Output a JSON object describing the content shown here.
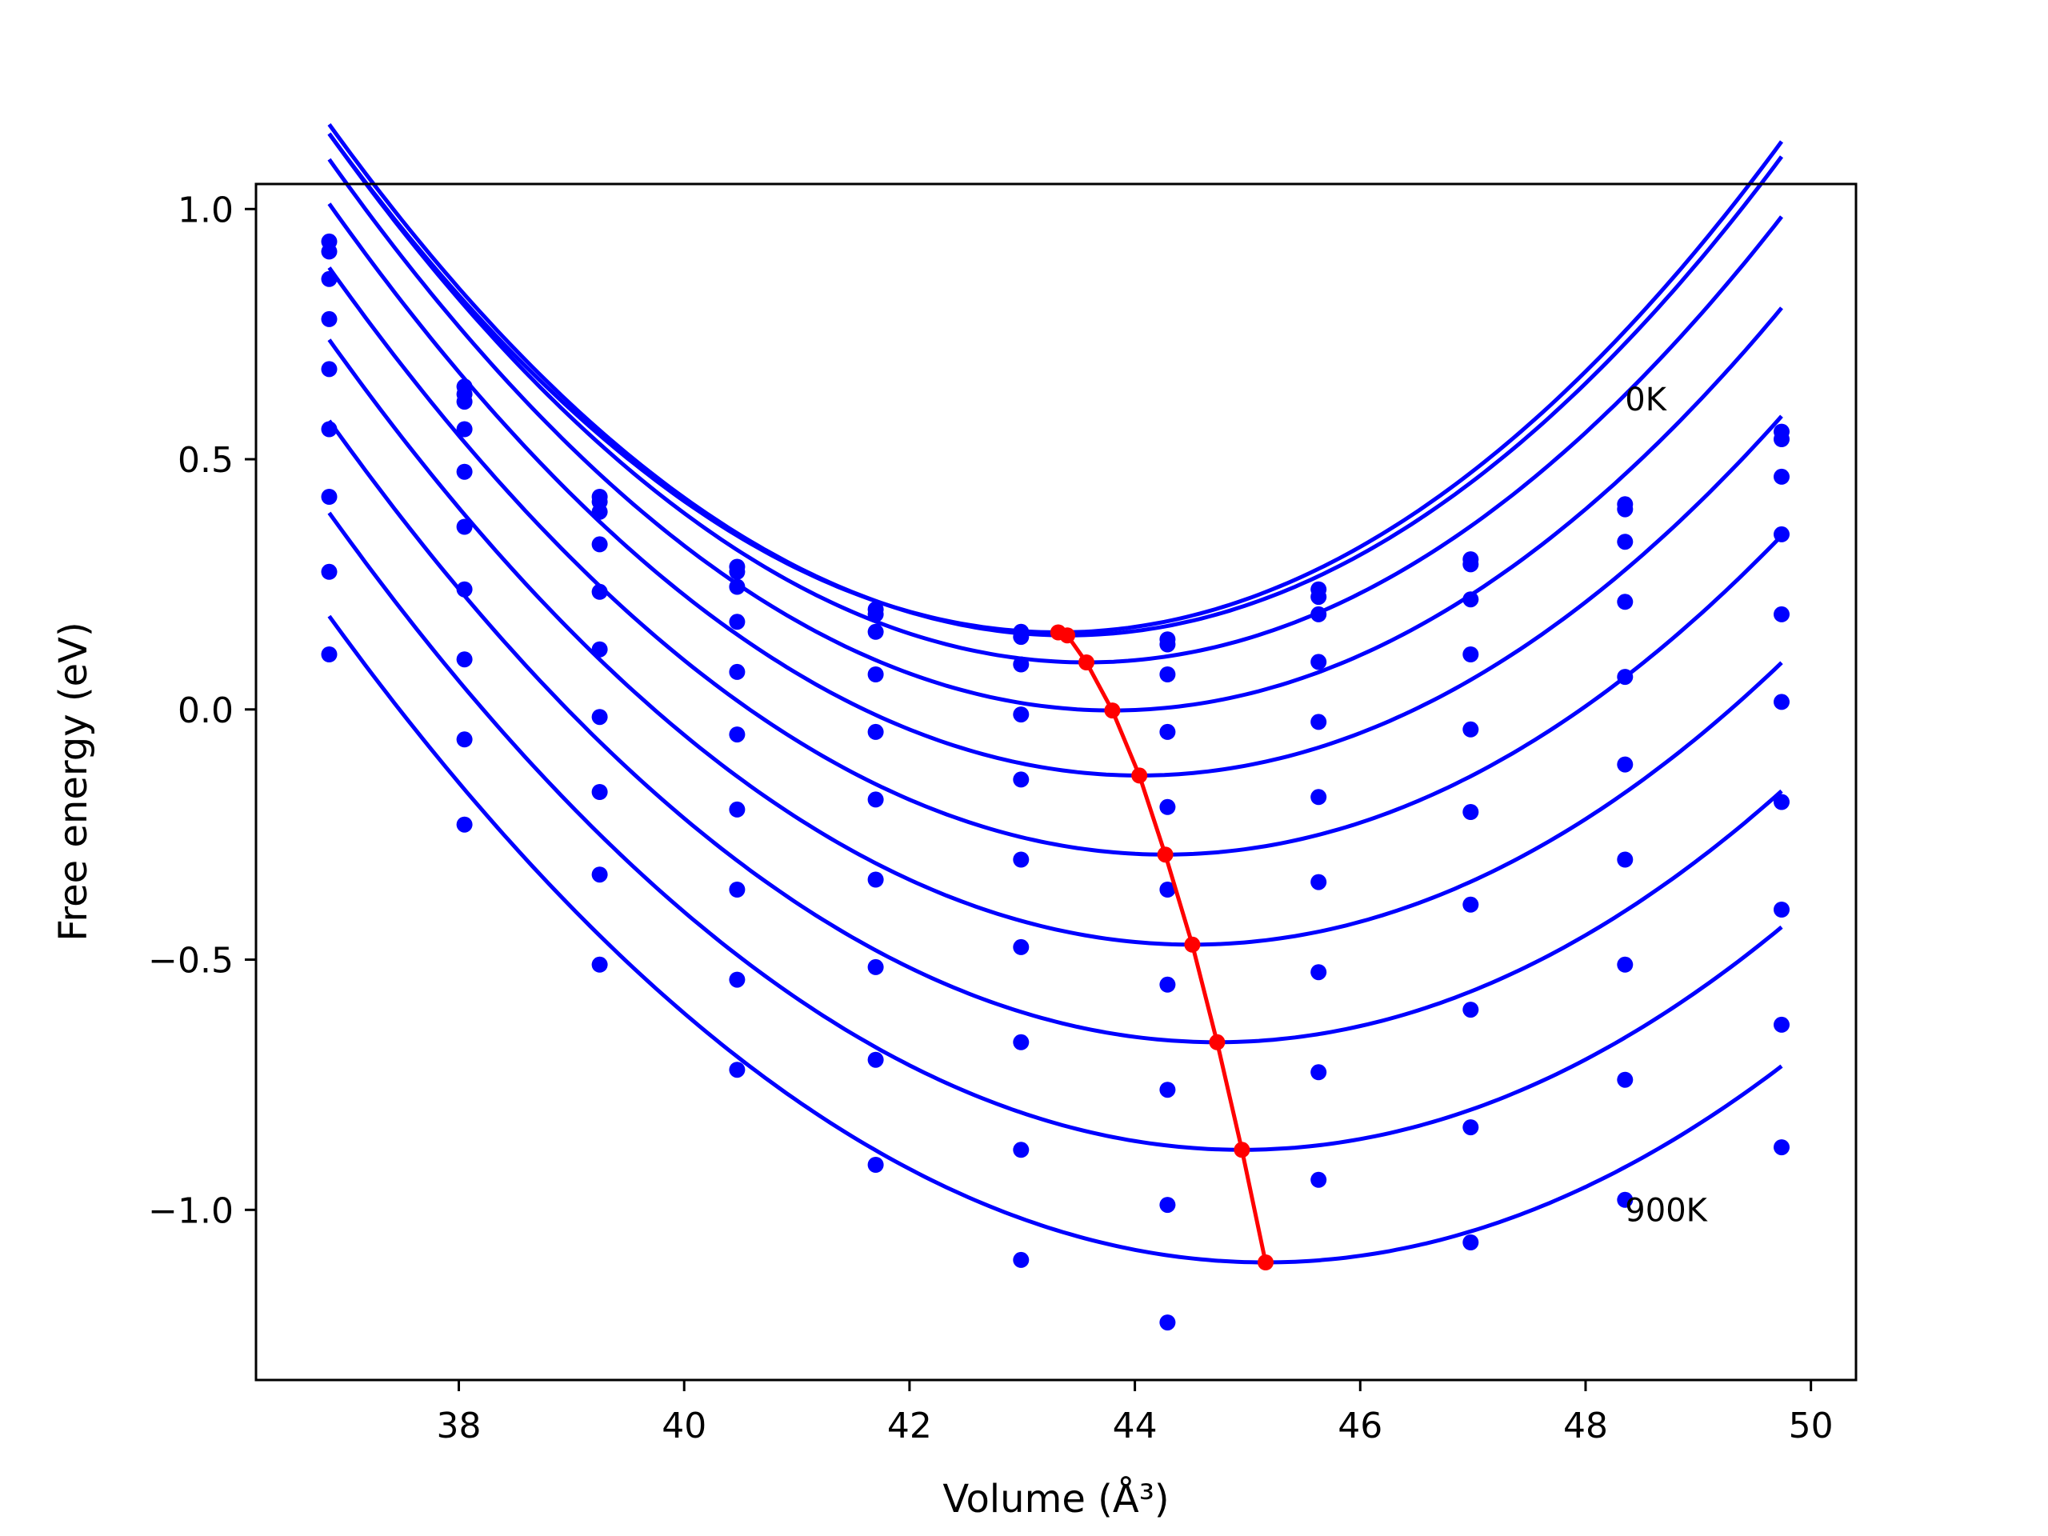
{
  "chart_data": {
    "type": "line",
    "title": "",
    "xlabel": "Volume",
    "xlabel_unit": "(Å³)",
    "ylabel": "Free energy (eV)",
    "xlim": [
      36.2,
      50.4
    ],
    "ylim": [
      -1.34,
      1.05
    ],
    "xticks": [
      38,
      40,
      42,
      44,
      46,
      48,
      50
    ],
    "yticks": [
      1.0,
      0.5,
      0.0,
      -0.5,
      -1.0
    ],
    "xtick_labels": [
      "38",
      "40",
      "42",
      "44",
      "46",
      "48",
      "50"
    ],
    "ytick_labels": [
      "1.0",
      "0.5",
      "0.0",
      "−0.5",
      "−1.0"
    ],
    "grid": false,
    "legend": "none",
    "colors": {
      "curves": "#0000ff",
      "minimum_path": "#ff0000",
      "axes": "#000000"
    },
    "x": [
      36.85,
      38.05,
      39.25,
      40.47,
      41.7,
      42.99,
      44.29,
      45.63,
      46.98,
      48.35,
      49.74
    ],
    "series": [
      {
        "fit": {
          "a": 0.0238,
          "v0": 43.32,
          "f0": 0.154
        },
        "values": [
          0.935,
          0.645,
          0.425,
          0.285,
          0.2,
          0.155,
          0.14,
          0.24,
          0.3,
          0.41,
          0.555
        ]
      },
      {
        "fit": {
          "a": 0.0238,
          "v0": 43.4,
          "f0": 0.148
        },
        "values": [
          0.915,
          0.63,
          0.415,
          0.275,
          0.19,
          0.145,
          0.13,
          0.225,
          0.29,
          0.4,
          0.54
        ]
      },
      {
        "fit": {
          "a": 0.0234,
          "v0": 43.57,
          "f0": 0.094
        },
        "values": [
          0.86,
          0.615,
          0.395,
          0.245,
          0.155,
          0.09,
          0.07,
          0.19,
          0.22,
          0.335,
          0.465
        ]
      },
      {
        "fit": {
          "a": 0.0228,
          "v0": 43.8,
          "f0": -0.002
        },
        "values": [
          0.78,
          0.56,
          0.33,
          0.175,
          0.07,
          -0.01,
          -0.045,
          0.095,
          0.11,
          0.215,
          0.35
        ]
      },
      {
        "fit": {
          "a": 0.0221,
          "v0": 44.04,
          "f0": -0.132
        },
        "values": [
          0.68,
          0.475,
          0.235,
          0.075,
          -0.045,
          -0.14,
          -0.195,
          -0.025,
          -0.04,
          0.065,
          0.19
        ]
      },
      {
        "fit": {
          "a": 0.0213,
          "v0": 44.27,
          "f0": -0.29
        },
        "values": [
          0.56,
          0.365,
          0.12,
          -0.05,
          -0.18,
          -0.3,
          -0.36,
          -0.175,
          -0.205,
          -0.11,
          0.015
        ]
      },
      {
        "fit": {
          "a": 0.0206,
          "v0": 44.51,
          "f0": -0.47
        },
        "values": [
          0.425,
          0.24,
          -0.015,
          -0.2,
          -0.34,
          -0.475,
          -0.55,
          -0.345,
          -0.39,
          -0.3,
          -0.185
        ]
      },
      {
        "fit": {
          "a": 0.02,
          "v0": 44.73,
          "f0": -0.665
        },
        "values": [
          0.275,
          0.1,
          -0.165,
          -0.36,
          -0.515,
          -0.665,
          -0.76,
          -0.525,
          -0.6,
          -0.51,
          -0.4
        ]
      },
      {
        "fit": {
          "a": 0.0194,
          "v0": 44.95,
          "f0": -0.88
        },
        "values": [
          0.11,
          -0.06,
          -0.33,
          -0.54,
          -0.7,
          -0.88,
          -0.99,
          -0.725,
          -0.835,
          -0.74,
          -0.63
        ]
      },
      {
        "fit": {
          "a": 0.0187,
          "v0": 45.16,
          "f0": -1.105
        },
        "values": [
          null,
          -0.23,
          -0.51,
          -0.72,
          -0.91,
          -1.1,
          -1.225,
          -0.94,
          -1.065,
          -0.98,
          -0.875
        ]
      }
    ],
    "minimum_path": {
      "x": [
        43.32,
        43.4,
        43.57,
        43.8,
        44.04,
        44.27,
        44.51,
        44.73,
        44.95,
        45.16
      ],
      "y": [
        0.154,
        0.148,
        0.094,
        -0.002,
        -0.132,
        -0.29,
        -0.47,
        -0.665,
        -0.88,
        -1.105
      ]
    },
    "annotations": [
      {
        "text": "0K",
        "x": 48.35,
        "y": 0.62
      },
      {
        "text": "900K",
        "x": 48.35,
        "y": -1.0
      }
    ]
  }
}
